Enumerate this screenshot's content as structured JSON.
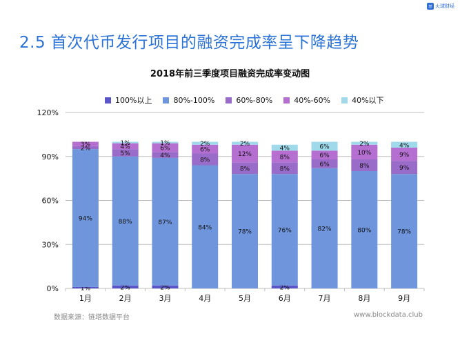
{
  "brand": {
    "name": "火球财经"
  },
  "slide_title": "2.5 首次代币发行项目的融资完成率呈下降趋势",
  "source": "数据来源：链塔数据平台",
  "website": "www.blockdata.club",
  "colors": {
    "title": "#2b72d6",
    "s1": "#5a55c8",
    "s2": "#6f96dd",
    "s3": "#9a6cc9",
    "s4": "#b46fd1",
    "s5": "#9fd9ea"
  },
  "chart_data": {
    "type": "bar",
    "stacked": true,
    "title": "2018年前三季度项目融资完成率变动图",
    "categories": [
      "1月",
      "2月",
      "3月",
      "4月",
      "5月",
      "6月",
      "7月",
      "8月",
      "9月"
    ],
    "ylim": [
      0,
      120
    ],
    "yticks": [
      0,
      30,
      60,
      90,
      120
    ],
    "ytick_labels": [
      "0%",
      "30%",
      "60%",
      "90%",
      "120%"
    ],
    "legend_position": "top",
    "series": [
      {
        "name": "100%以上",
        "values": [
          1,
          2,
          2,
          0,
          0,
          2,
          0,
          0,
          0
        ],
        "labels": [
          "1%",
          "2%",
          "2%",
          "",
          "",
          "2%",
          "",
          "",
          ""
        ]
      },
      {
        "name": "80%-100%",
        "values": [
          94,
          88,
          87,
          84,
          78,
          76,
          82,
          80,
          78
        ],
        "labels": [
          "94%",
          "88%",
          "87%",
          "84%",
          "78%",
          "76%",
          "82%",
          "80%",
          "78%"
        ]
      },
      {
        "name": "60%-80%",
        "values": [
          2,
          5,
          4,
          8,
          8,
          8,
          6,
          8,
          9
        ],
        "labels": [
          "2%",
          "5%",
          "4%",
          "8%",
          "8%",
          "8%",
          "6%",
          "8%",
          "9%"
        ]
      },
      {
        "name": "40%-60%",
        "values": [
          3,
          4,
          6,
          6,
          12,
          8,
          6,
          10,
          9
        ],
        "labels": [
          "3%",
          "4%",
          "6%",
          "6%",
          "12%",
          "8%",
          "6%",
          "10%",
          "9%"
        ]
      },
      {
        "name": "40%以下",
        "values": [
          0,
          1,
          1,
          2,
          2,
          4,
          6,
          2,
          4
        ],
        "labels": [
          "",
          "1%",
          "1%",
          "2%",
          "2%",
          "4%",
          "6%",
          "2%",
          "4%"
        ]
      }
    ]
  }
}
